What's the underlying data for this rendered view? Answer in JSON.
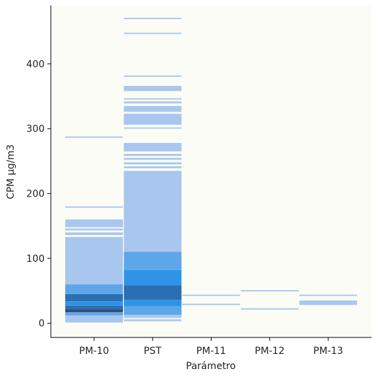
{
  "chart_data": {
    "type": "heatmap",
    "title": "",
    "xlabel": "Parámetro",
    "ylabel": "CPM µg/m3",
    "categories": [
      "PM-10",
      "PST",
      "PM-11",
      "PM-12",
      "PM-13"
    ],
    "ylim": [
      -22,
      490
    ],
    "yticks": [
      0,
      100,
      200,
      300,
      400
    ],
    "grid": false,
    "legend": "none",
    "colors": {
      "background": "#fbfcf6",
      "light": "#a9c7ee",
      "mid": "#5ea6ea",
      "bright": "#2f94e6",
      "dark": "#2a6fb2",
      "darkest": "#3b4963"
    },
    "bands": [
      {
        "category": "PM-10",
        "from": 1,
        "to": 12,
        "level": "light"
      },
      {
        "category": "PM-10",
        "from": 12,
        "to": 17,
        "level": "mid"
      },
      {
        "category": "PM-10",
        "from": 17,
        "to": 21,
        "level": "darkest"
      },
      {
        "category": "PM-10",
        "from": 21,
        "to": 27,
        "level": "dark"
      },
      {
        "category": "PM-10",
        "from": 27,
        "to": 34,
        "level": "bright"
      },
      {
        "category": "PM-10",
        "from": 34,
        "to": 45,
        "level": "dark"
      },
      {
        "category": "PM-10",
        "from": 45,
        "to": 60,
        "level": "mid"
      },
      {
        "category": "PM-10",
        "from": 60,
        "to": 133,
        "level": "light"
      },
      {
        "category": "PM-10",
        "from": 136,
        "to": 140,
        "level": "light"
      },
      {
        "category": "PM-10",
        "from": 143,
        "to": 146,
        "level": "light"
      },
      {
        "category": "PM-10",
        "from": 148,
        "to": 160,
        "level": "light"
      },
      {
        "category": "PM-10",
        "from": 178,
        "to": 180,
        "level": "light"
      },
      {
        "category": "PM-10",
        "from": 286,
        "to": 288,
        "level": "light"
      },
      {
        "category": "PST",
        "from": 3,
        "to": 6,
        "level": "light"
      },
      {
        "category": "PST",
        "from": 8,
        "to": 13,
        "level": "light"
      },
      {
        "category": "PST",
        "from": 13,
        "to": 26,
        "level": "mid"
      },
      {
        "category": "PST",
        "from": 26,
        "to": 36,
        "level": "bright"
      },
      {
        "category": "PST",
        "from": 36,
        "to": 58,
        "level": "dark"
      },
      {
        "category": "PST",
        "from": 58,
        "to": 82,
        "level": "bright"
      },
      {
        "category": "PST",
        "from": 82,
        "to": 110,
        "level": "mid"
      },
      {
        "category": "PST",
        "from": 110,
        "to": 235,
        "level": "light"
      },
      {
        "category": "PST",
        "from": 239,
        "to": 242,
        "level": "light"
      },
      {
        "category": "PST",
        "from": 245,
        "to": 248,
        "level": "light"
      },
      {
        "category": "PST",
        "from": 252,
        "to": 255,
        "level": "light"
      },
      {
        "category": "PST",
        "from": 258,
        "to": 261,
        "level": "light"
      },
      {
        "category": "PST",
        "from": 265,
        "to": 278,
        "level": "light"
      },
      {
        "category": "PST",
        "from": 300,
        "to": 302,
        "level": "light"
      },
      {
        "category": "PST",
        "from": 306,
        "to": 323,
        "level": "light"
      },
      {
        "category": "PST",
        "from": 326,
        "to": 335,
        "level": "light"
      },
      {
        "category": "PST",
        "from": 339,
        "to": 342,
        "level": "light"
      },
      {
        "category": "PST",
        "from": 345,
        "to": 347,
        "level": "light"
      },
      {
        "category": "PST",
        "from": 358,
        "to": 366,
        "level": "light"
      },
      {
        "category": "PST",
        "from": 380,
        "to": 382,
        "level": "light"
      },
      {
        "category": "PST",
        "from": 446,
        "to": 448,
        "level": "light"
      },
      {
        "category": "PST",
        "from": 469,
        "to": 471,
        "level": "light"
      },
      {
        "category": "PM-11",
        "from": 28,
        "to": 30,
        "level": "light"
      },
      {
        "category": "PM-11",
        "from": 42,
        "to": 44,
        "level": "light"
      },
      {
        "category": "PM-12",
        "from": 21,
        "to": 23,
        "level": "light"
      },
      {
        "category": "PM-12",
        "from": 49,
        "to": 51,
        "level": "light"
      },
      {
        "category": "PM-13",
        "from": 28,
        "to": 35,
        "level": "light"
      },
      {
        "category": "PM-13",
        "from": 42,
        "to": 44,
        "level": "light"
      }
    ]
  }
}
